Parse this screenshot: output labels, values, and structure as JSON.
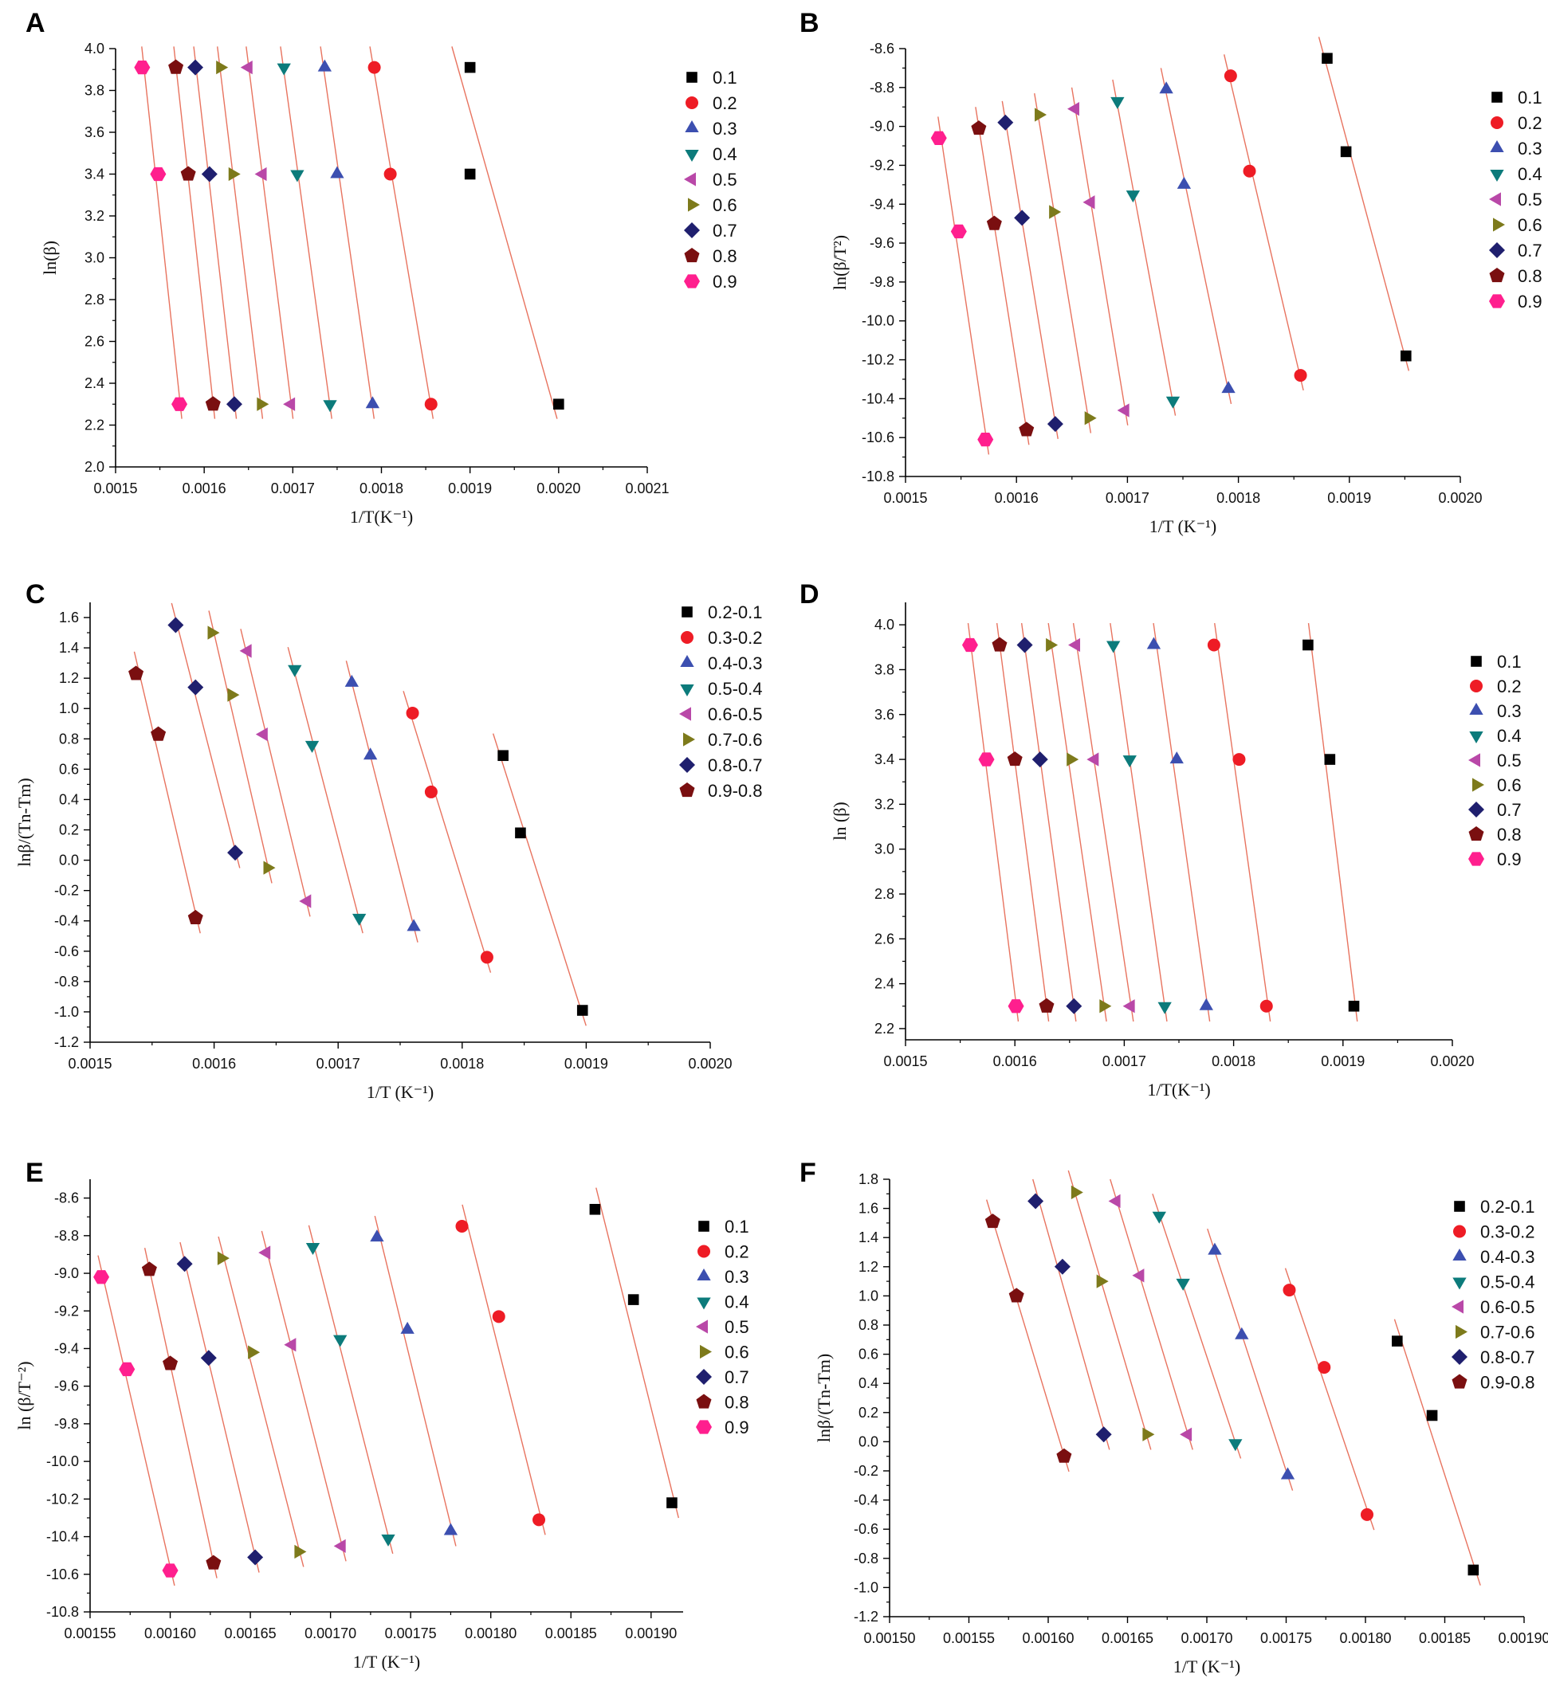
{
  "figure": {
    "panel_labels": [
      "A",
      "B",
      "C",
      "D",
      "E",
      "F"
    ]
  },
  "styles": {
    "fit_line_color": "#e8735f",
    "series_colors": [
      "#000000",
      "#ee1c25",
      "#3c4fb0",
      "#0c7b7b",
      "#b948a8",
      "#7d7a1b",
      "#1f1f6e",
      "#7a0f10",
      "#ff1f8e"
    ],
    "series_markers": [
      "square",
      "circle",
      "triangle-up",
      "triangle-down",
      "triangle-left",
      "triangle-right",
      "diamond",
      "pentagon",
      "hexagon"
    ]
  },
  "chart_data": [
    {
      "panel": "A",
      "type": "scatter",
      "fit_lines": true,
      "xlabel": "1/T(K⁻¹)",
      "ylabel": "ln(β)",
      "xlim": [
        0.0015,
        0.0021
      ],
      "ylim": [
        2.0,
        4.0
      ],
      "xticks": [
        "0.0015",
        "0.0016",
        "0.0017",
        "0.0018",
        "0.0019",
        "0.0020",
        "0.0021"
      ],
      "yticks": [
        "2.0",
        "2.2",
        "2.4",
        "2.6",
        "2.8",
        "3.0",
        "3.2",
        "3.4",
        "3.6",
        "3.8",
        "4.0"
      ],
      "series": [
        {
          "name": "0.1",
          "points": [
            [
              0.0019,
              3.91
            ],
            [
              0.0019,
              3.4
            ],
            [
              0.002,
              2.3
            ]
          ]
        },
        {
          "name": "0.2",
          "points": [
            [
              0.001792,
              3.91
            ],
            [
              0.00181,
              3.4
            ],
            [
              0.001856,
              2.3
            ]
          ]
        },
        {
          "name": "0.3",
          "points": [
            [
              0.001736,
              3.91
            ],
            [
              0.00175,
              3.4
            ],
            [
              0.00179,
              2.3
            ]
          ]
        },
        {
          "name": "0.4",
          "points": [
            [
              0.00169,
              3.91
            ],
            [
              0.001705,
              3.4
            ],
            [
              0.001742,
              2.3
            ]
          ]
        },
        {
          "name": "0.5",
          "points": [
            [
              0.00165,
              3.91
            ],
            [
              0.001666,
              3.4
            ],
            [
              0.001698,
              2.3
            ]
          ]
        },
        {
          "name": "0.6",
          "points": [
            [
              0.001618,
              3.91
            ],
            [
              0.001632,
              3.4
            ],
            [
              0.001664,
              2.3
            ]
          ]
        },
        {
          "name": "0.7",
          "points": [
            [
              0.00159,
              3.91
            ],
            [
              0.001606,
              3.4
            ],
            [
              0.001634,
              2.3
            ]
          ]
        },
        {
          "name": "0.8",
          "points": [
            [
              0.001568,
              3.91
            ],
            [
              0.001582,
              3.4
            ],
            [
              0.00161,
              2.3
            ]
          ]
        },
        {
          "name": "0.9",
          "points": [
            [
              0.00153,
              3.91
            ],
            [
              0.001548,
              3.4
            ],
            [
              0.001572,
              2.3
            ]
          ]
        }
      ]
    },
    {
      "panel": "B",
      "type": "scatter",
      "fit_lines": true,
      "xlabel": "1/T (K⁻¹)",
      "ylabel": "ln(β/T²)",
      "xlim": [
        0.0015,
        0.002
      ],
      "ylim": [
        -10.8,
        -8.6
      ],
      "xticks": [
        "0.0015",
        "0.0016",
        "0.0017",
        "0.0018",
        "0.0019",
        "0.0020"
      ],
      "yticks": [
        "-10.8",
        "-10.6",
        "-10.4",
        "-10.2",
        "-10.0",
        "-9.8",
        "-9.6",
        "-9.4",
        "-9.2",
        "-9.0",
        "-8.8",
        "-8.6"
      ],
      "series": [
        {
          "name": "0.1",
          "points": [
            [
              0.00188,
              -8.65
            ],
            [
              0.001897,
              -9.13
            ],
            [
              0.001951,
              -10.18
            ]
          ]
        },
        {
          "name": "0.2",
          "points": [
            [
              0.001793,
              -8.74
            ],
            [
              0.00181,
              -9.23
            ],
            [
              0.001856,
              -10.28
            ]
          ]
        },
        {
          "name": "0.3",
          "points": [
            [
              0.001735,
              -8.81
            ],
            [
              0.001751,
              -9.3
            ],
            [
              0.001791,
              -10.35
            ]
          ]
        },
        {
          "name": "0.4",
          "points": [
            [
              0.001691,
              -8.87
            ],
            [
              0.001705,
              -9.35
            ],
            [
              0.001741,
              -10.41
            ]
          ]
        },
        {
          "name": "0.5",
          "points": [
            [
              0.001653,
              -8.91
            ],
            [
              0.001667,
              -9.39
            ],
            [
              0.001698,
              -10.46
            ]
          ]
        },
        {
          "name": "0.6",
          "points": [
            [
              0.00162,
              -8.94
            ],
            [
              0.001633,
              -9.44
            ],
            [
              0.001665,
              -10.5
            ]
          ]
        },
        {
          "name": "0.7",
          "points": [
            [
              0.00159,
              -8.98
            ],
            [
              0.001605,
              -9.47
            ],
            [
              0.001635,
              -10.53
            ]
          ]
        },
        {
          "name": "0.8",
          "points": [
            [
              0.001566,
              -9.01
            ],
            [
              0.00158,
              -9.5
            ],
            [
              0.001609,
              -10.56
            ]
          ]
        },
        {
          "name": "0.9",
          "points": [
            [
              0.00153,
              -9.06
            ],
            [
              0.001548,
              -9.54
            ],
            [
              0.001572,
              -10.61
            ]
          ]
        }
      ]
    },
    {
      "panel": "C",
      "type": "scatter",
      "fit_lines": true,
      "xlabel": "1/T (K⁻¹)",
      "ylabel": "lnβ/(Tn-Tm)",
      "xlim": [
        0.0015,
        0.002
      ],
      "ylim": [
        -1.2,
        1.7
      ],
      "xticks": [
        "0.0015",
        "0.0016",
        "0.0017",
        "0.0018",
        "0.0019",
        "0.0020"
      ],
      "yticks": [
        "-1.2",
        "-1.0",
        "-0.8",
        "-0.6",
        "-0.4",
        "-0.2",
        "0.0",
        "0.2",
        "0.4",
        "0.6",
        "0.8",
        "1.0",
        "1.2",
        "1.4",
        "1.6"
      ],
      "series": [
        {
          "name": "0.2-0.1",
          "points": [
            [
              0.001833,
              0.69
            ],
            [
              0.001847,
              0.18
            ],
            [
              0.001897,
              -0.99
            ]
          ]
        },
        {
          "name": "0.3-0.2",
          "points": [
            [
              0.00176,
              0.97
            ],
            [
              0.001775,
              0.45
            ],
            [
              0.00182,
              -0.64
            ]
          ]
        },
        {
          "name": "0.4-0.3",
          "points": [
            [
              0.001711,
              1.17
            ],
            [
              0.001726,
              0.69
            ],
            [
              0.001761,
              -0.44
            ]
          ]
        },
        {
          "name": "0.5-0.4",
          "points": [
            [
              0.001665,
              1.26
            ],
            [
              0.001679,
              0.76
            ],
            [
              0.001717,
              -0.38
            ]
          ]
        },
        {
          "name": "0.6-0.5",
          "points": [
            [
              0.001627,
              1.38
            ],
            [
              0.00164,
              0.83
            ],
            [
              0.001675,
              -0.27
            ]
          ]
        },
        {
          "name": "0.7-0.6",
          "points": [
            [
              0.001598,
              1.5
            ],
            [
              0.001614,
              1.09
            ],
            [
              0.001643,
              -0.05
            ]
          ]
        },
        {
          "name": "0.8-0.7",
          "points": [
            [
              0.001569,
              1.55
            ],
            [
              0.001585,
              1.14
            ],
            [
              0.001617,
              0.05
            ]
          ]
        },
        {
          "name": "0.9-0.8",
          "points": [
            [
              0.001537,
              1.23
            ],
            [
              0.001555,
              0.83
            ],
            [
              0.001585,
              -0.38
            ]
          ]
        }
      ]
    },
    {
      "panel": "D",
      "type": "scatter",
      "fit_lines": true,
      "xlabel": "1/T(K⁻¹)",
      "ylabel": "ln (β)",
      "xlim": [
        0.0015,
        0.002
      ],
      "ylim": [
        2.15,
        4.1
      ],
      "xticks": [
        "0.0015",
        "0.0016",
        "0.0017",
        "0.0018",
        "0.0019",
        "0.0020"
      ],
      "yticks": [
        "2.2",
        "2.4",
        "2.6",
        "2.8",
        "3.0",
        "3.2",
        "3.4",
        "3.6",
        "3.8",
        "4.0"
      ],
      "series": [
        {
          "name": "0.1",
          "points": [
            [
              0.001868,
              3.91
            ],
            [
              0.001888,
              3.4
            ],
            [
              0.00191,
              2.3
            ]
          ]
        },
        {
          "name": "0.2",
          "points": [
            [
              0.001782,
              3.91
            ],
            [
              0.001805,
              3.4
            ],
            [
              0.00183,
              2.3
            ]
          ]
        },
        {
          "name": "0.3",
          "points": [
            [
              0.001727,
              3.91
            ],
            [
              0.001748,
              3.4
            ],
            [
              0.001775,
              2.3
            ]
          ]
        },
        {
          "name": "0.4",
          "points": [
            [
              0.00169,
              3.91
            ],
            [
              0.001705,
              3.4
            ],
            [
              0.001737,
              2.3
            ]
          ]
        },
        {
          "name": "0.5",
          "points": [
            [
              0.001656,
              3.91
            ],
            [
              0.001673,
              3.4
            ],
            [
              0.001706,
              2.3
            ]
          ]
        },
        {
          "name": "0.6",
          "points": [
            [
              0.001632,
              3.91
            ],
            [
              0.001651,
              3.4
            ],
            [
              0.001681,
              2.3
            ]
          ]
        },
        {
          "name": "0.7",
          "points": [
            [
              0.001609,
              3.91
            ],
            [
              0.001623,
              3.4
            ],
            [
              0.001654,
              2.3
            ]
          ]
        },
        {
          "name": "0.8",
          "points": [
            [
              0.001586,
              3.91
            ],
            [
              0.0016,
              3.4
            ],
            [
              0.001629,
              2.3
            ]
          ]
        },
        {
          "name": "0.9",
          "points": [
            [
              0.001559,
              3.91
            ],
            [
              0.001574,
              3.4
            ],
            [
              0.001601,
              2.3
            ]
          ]
        }
      ]
    },
    {
      "panel": "E",
      "type": "scatter",
      "fit_lines": true,
      "xlabel": "1/T (K⁻¹)",
      "ylabel": "ln (β/T⁻²)",
      "xlim": [
        0.00155,
        0.00192
      ],
      "ylim": [
        -10.8,
        -8.5
      ],
      "xticks": [
        "0.00155",
        "0.00160",
        "0.00165",
        "0.00170",
        "0.00175",
        "0.00180",
        "0.00185",
        "0.00190"
      ],
      "yticks": [
        "-10.8",
        "-10.6",
        "-10.4",
        "-10.2",
        "-10.0",
        "-9.8",
        "-9.6",
        "-9.4",
        "-9.2",
        "-9.0",
        "-8.8",
        "-8.6"
      ],
      "series": [
        {
          "name": "0.1",
          "points": [
            [
              0.001865,
              -8.66
            ],
            [
              0.001889,
              -9.14
            ],
            [
              0.001913,
              -10.22
            ]
          ]
        },
        {
          "name": "0.2",
          "points": [
            [
              0.001782,
              -8.75
            ],
            [
              0.001805,
              -9.23
            ],
            [
              0.00183,
              -10.31
            ]
          ]
        },
        {
          "name": "0.3",
          "points": [
            [
              0.001729,
              -8.81
            ],
            [
              0.001748,
              -9.3
            ],
            [
              0.001775,
              -10.37
            ]
          ]
        },
        {
          "name": "0.4",
          "points": [
            [
              0.001689,
              -8.86
            ],
            [
              0.001706,
              -9.35
            ],
            [
              0.001736,
              -10.41
            ]
          ]
        },
        {
          "name": "0.5",
          "points": [
            [
              0.00166,
              -8.89
            ],
            [
              0.001676,
              -9.38
            ],
            [
              0.001707,
              -10.45
            ]
          ]
        },
        {
          "name": "0.6",
          "points": [
            [
              0.001632,
              -8.92
            ],
            [
              0.001651,
              -9.42
            ],
            [
              0.00168,
              -10.48
            ]
          ]
        },
        {
          "name": "0.7",
          "points": [
            [
              0.001609,
              -8.95
            ],
            [
              0.001624,
              -9.45
            ],
            [
              0.001653,
              -10.51
            ]
          ]
        },
        {
          "name": "0.8",
          "points": [
            [
              0.001587,
              -8.98
            ],
            [
              0.0016,
              -9.48
            ],
            [
              0.001627,
              -10.54
            ]
          ]
        },
        {
          "name": "0.9",
          "points": [
            [
              0.001557,
              -9.02
            ],
            [
              0.001573,
              -9.51
            ],
            [
              0.0016,
              -10.58
            ]
          ]
        }
      ]
    },
    {
      "panel": "F",
      "type": "scatter",
      "fit_lines": true,
      "xlabel": "1/T (K⁻¹)",
      "ylabel": "lnβ/(Tn-Tm)",
      "xlim": [
        0.0015,
        0.0019
      ],
      "ylim": [
        -1.2,
        1.8
      ],
      "xticks": [
        "0.00150",
        "0.00155",
        "0.00160",
        "0.00165",
        "0.00170",
        "0.00175",
        "0.00180",
        "0.00185",
        "0.00190"
      ],
      "yticks": [
        "-1.2",
        "-1.0",
        "-0.8",
        "-0.6",
        "-0.4",
        "-0.2",
        "0.0",
        "0.2",
        "0.4",
        "0.6",
        "0.8",
        "1.0",
        "1.2",
        "1.4",
        "1.6",
        "1.8"
      ],
      "series": [
        {
          "name": "0.2-0.1",
          "points": [
            [
              0.00182,
              0.69
            ],
            [
              0.001842,
              0.18
            ],
            [
              0.001868,
              -0.88
            ]
          ]
        },
        {
          "name": "0.3-0.2",
          "points": [
            [
              0.001752,
              1.04
            ],
            [
              0.001774,
              0.51
            ],
            [
              0.001801,
              -0.5
            ]
          ]
        },
        {
          "name": "0.4-0.3",
          "points": [
            [
              0.001705,
              1.31
            ],
            [
              0.001722,
              0.73
            ],
            [
              0.001751,
              -0.23
            ]
          ]
        },
        {
          "name": "0.5-0.4",
          "points": [
            [
              0.00167,
              1.55
            ],
            [
              0.001685,
              1.09
            ],
            [
              0.001718,
              -0.01
            ]
          ]
        },
        {
          "name": "0.6-0.5",
          "points": [
            [
              0.001643,
              1.65
            ],
            [
              0.001658,
              1.14
            ],
            [
              0.001688,
              0.05
            ]
          ]
        },
        {
          "name": "0.7-0.6",
          "points": [
            [
              0.001617,
              1.71
            ],
            [
              0.001633,
              1.1
            ],
            [
              0.001662,
              0.05
            ]
          ]
        },
        {
          "name": "0.8-0.7",
          "points": [
            [
              0.001592,
              1.65
            ],
            [
              0.001609,
              1.2
            ],
            [
              0.001635,
              0.05
            ]
          ]
        },
        {
          "name": "0.9-0.8",
          "points": [
            [
              0.001565,
              1.51
            ],
            [
              0.00158,
              1.0
            ],
            [
              0.00161,
              -0.1
            ]
          ]
        }
      ]
    }
  ]
}
